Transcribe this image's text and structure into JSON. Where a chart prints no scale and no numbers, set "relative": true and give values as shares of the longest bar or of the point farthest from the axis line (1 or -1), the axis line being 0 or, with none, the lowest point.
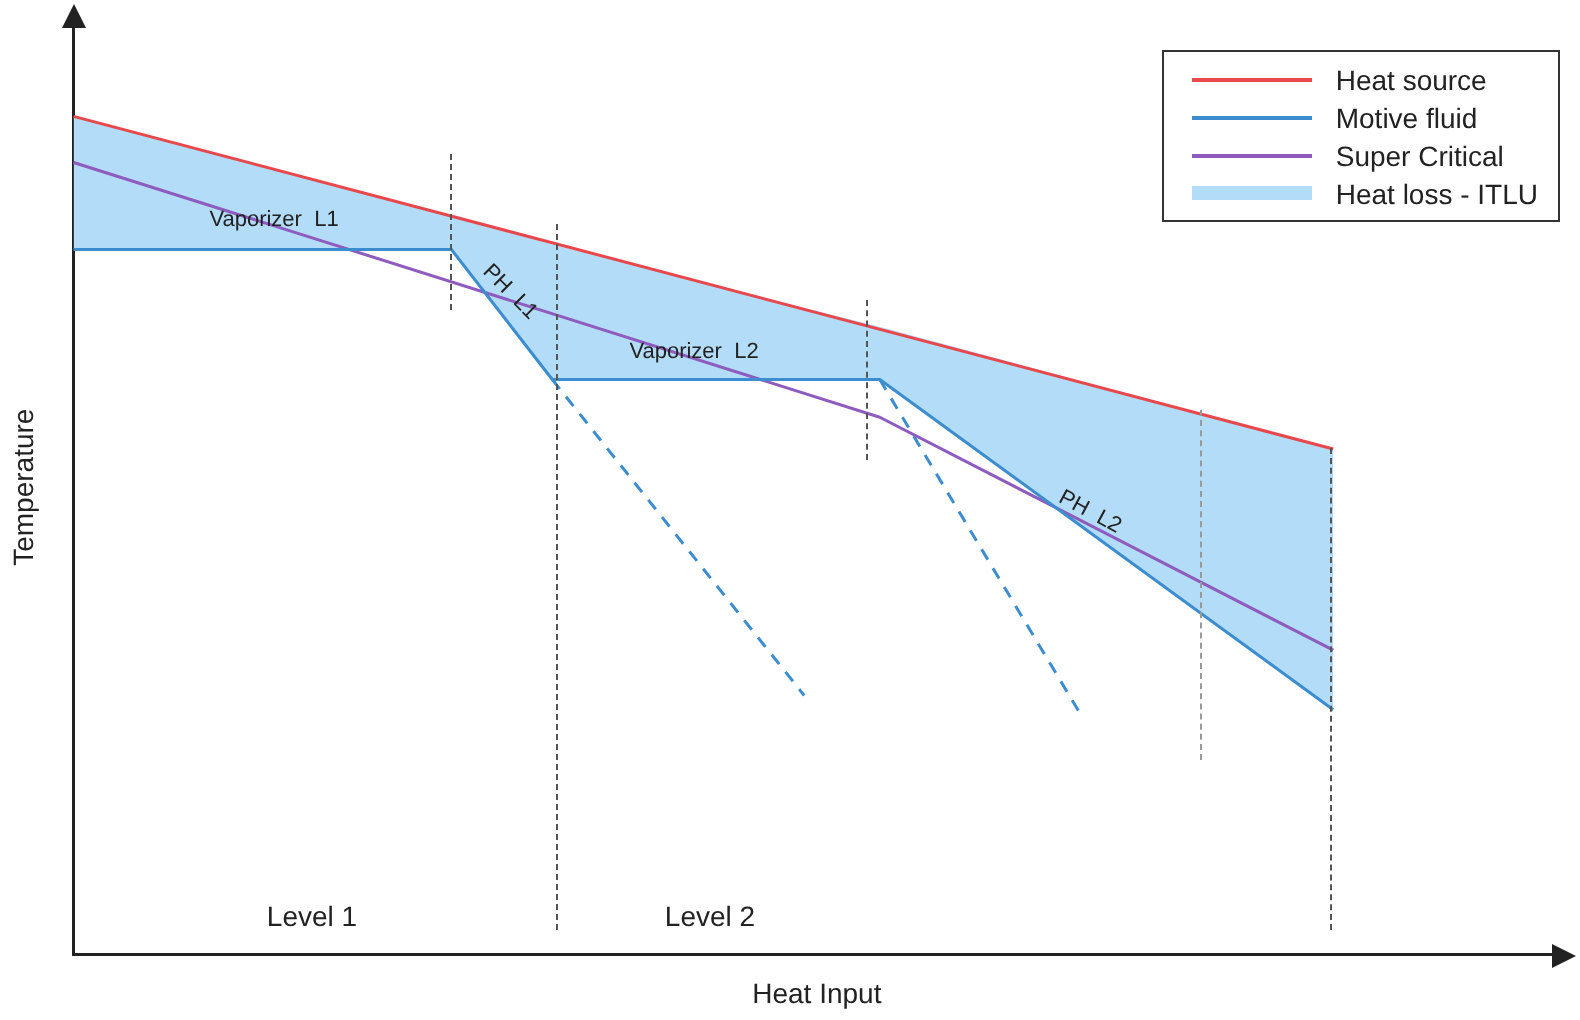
{
  "chart_data": {
    "type": "line",
    "relative": true,
    "xlabel": "Heat Input",
    "ylabel": "Temperature",
    "legend": "top right",
    "marker": "none",
    "grid": false,
    "tick_labels": false,
    "categories": [
      null,
      null,
      null,
      null,
      null,
      null,
      null,
      null,
      null,
      null,
      null,
      null,
      null,
      null,
      null,
      null,
      null,
      null,
      null,
      null,
      null,
      null,
      null,
      null,
      null,
      null,
      null,
      null,
      null,
      null,
      null,
      null,
      null,
      null,
      null,
      null,
      null,
      null,
      null,
      null,
      null,
      null,
      null,
      null,
      null,
      null,
      null,
      null,
      null,
      null,
      null,
      null,
      null,
      null,
      null,
      null,
      null,
      null,
      null,
      null
    ],
    "series": [
      {
        "name": "Heat source",
        "color": "#e8474b",
        "values": [
          1.0,
          null,
          null,
          null,
          null,
          null,
          null,
          null,
          null,
          null,
          null,
          null,
          null,
          null,
          null,
          null,
          null,
          null,
          null,
          null,
          null,
          null,
          null,
          null,
          null,
          null,
          null,
          null,
          null,
          null,
          null,
          null,
          null,
          null,
          null,
          null,
          null,
          null,
          null,
          null,
          null,
          null,
          null,
          null,
          null,
          null,
          null,
          null,
          null,
          null,
          0.603,
          null,
          null,
          null,
          null,
          null,
          null,
          null,
          null,
          null
        ]
      },
      {
        "name": "Motive fluid",
        "color": "#3c8dcf",
        "values": [
          0.841,
          null,
          null,
          null,
          null,
          null,
          null,
          null,
          null,
          null,
          null,
          null,
          null,
          null,
          null,
          0.841,
          null,
          null,
          null,
          0.686,
          null,
          null,
          null,
          null,
          null,
          null,
          null,
          null,
          null,
          null,
          null,
          null,
          0.686,
          null,
          null,
          null,
          null,
          null,
          null,
          null,
          null,
          null,
          null,
          null,
          null,
          null,
          null,
          null,
          null,
          null,
          0.292,
          null,
          null,
          null,
          null,
          null,
          null,
          null,
          null,
          null
        ]
      },
      {
        "name": "Super Critical",
        "color": "#8e5bbf",
        "values": [
          0.945,
          null,
          null,
          null,
          null,
          null,
          null,
          null,
          null,
          null,
          null,
          null,
          null,
          null,
          null,
          null,
          null,
          null,
          null,
          null,
          null,
          null,
          null,
          null,
          null,
          null,
          null,
          null,
          null,
          null,
          null,
          null,
          0.641,
          null,
          null,
          null,
          null,
          null,
          null,
          null,
          null,
          null,
          null,
          null,
          null,
          null,
          null,
          null,
          null,
          null,
          0.363,
          null,
          null,
          null,
          null,
          null,
          null,
          null,
          null,
          null
        ]
      },
      {
        "name": "Heat loss - ITLU",
        "type": "area",
        "color": "#b3dcf8",
        "values": [
          1.0,
          null,
          null,
          null,
          null,
          null,
          null,
          null,
          null,
          null,
          null,
          null,
          null,
          null,
          null,
          0.881,
          null,
          null,
          null,
          0.847,
          null,
          null,
          null,
          null,
          null,
          null,
          null,
          null,
          null,
          null,
          null,
          null,
          0.749,
          null,
          null,
          null,
          null,
          null,
          null,
          null,
          null,
          null,
          null,
          null,
          null,
          null,
          null,
          null,
          null,
          null,
          0.603,
          null,
          null,
          null,
          null,
          null,
          null,
          null,
          null,
          null
        ]
      },
      {
        "color": "#3c8dcf",
        "line_style": "dashed",
        "values": [
          null,
          null,
          null,
          null,
          null,
          null,
          null,
          null,
          null,
          null,
          null,
          null,
          null,
          null,
          null,
          null,
          null,
          null,
          null,
          0.686,
          null,
          null,
          null,
          null,
          null,
          null,
          null,
          null,
          null,
          0.309,
          null,
          null,
          null,
          null,
          null,
          null,
          null,
          null,
          null,
          null,
          null,
          null,
          null,
          null,
          null,
          null,
          null,
          null,
          null,
          null,
          null,
          null,
          null,
          null,
          null,
          null,
          null,
          null,
          null,
          null
        ]
      },
      {
        "color": "#3c8dcf",
        "line_style": "dashed",
        "values": [
          null,
          null,
          null,
          null,
          null,
          null,
          null,
          null,
          null,
          null,
          null,
          null,
          null,
          null,
          null,
          null,
          null,
          null,
          null,
          null,
          null,
          null,
          null,
          null,
          null,
          null,
          null,
          null,
          null,
          null,
          null,
          null,
          0.686,
          null,
          null,
          null,
          null,
          null,
          null,
          null,
          0.285,
          null,
          null,
          null,
          null,
          null,
          null,
          null,
          null,
          null,
          null,
          null,
          null,
          null,
          null,
          null,
          null,
          null,
          null,
          null
        ]
      }
    ],
    "annotations": [
      "Vaporizer  L1",
      "PH  L1",
      "Vaporizer  L2",
      "PH  L2",
      "Level 1",
      "Level 2"
    ]
  }
}
